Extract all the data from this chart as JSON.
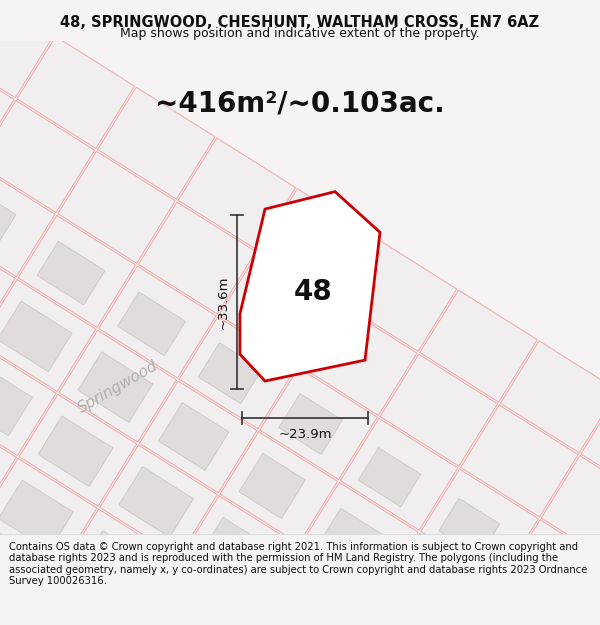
{
  "title_line1": "48, SPRINGWOOD, CHESHUNT, WALTHAM CROSS, EN7 6AZ",
  "title_line2": "Map shows position and indicative extent of the property.",
  "area_label": "~416m²/~0.103ac.",
  "property_number": "48",
  "dim_height": "~33.6m",
  "dim_width": "~23.9m",
  "street_label": "Springwood",
  "footer_text": "Contains OS data © Crown copyright and database right 2021. This information is subject to Crown copyright and database rights 2023 and is reproduced with the permission of HM Land Registry. The polygons (including the associated geometry, namely x, y co-ordinates) are subject to Crown copyright and database rights 2023 Ordnance Survey 100026316.",
  "map_bg": "#f7f5f5",
  "property_fill": "#ffffff",
  "property_edge": "#cc0000",
  "pink_line_color": "#f0b0b0",
  "gray_line_color": "#c8c8c8",
  "dim_line_color": "#333333",
  "building_fill": "#e0dcdc",
  "parcel_fill": "#f0eeee",
  "road_fill": "#e8e5e5",
  "street_text_color": "#b0b0b0",
  "title_fontsize": 10.5,
  "subtitle_fontsize": 9.0,
  "area_fontsize": 20,
  "number_fontsize": 20,
  "dim_fontsize": 9.5,
  "street_fontsize": 11,
  "footer_fontsize": 7.2
}
